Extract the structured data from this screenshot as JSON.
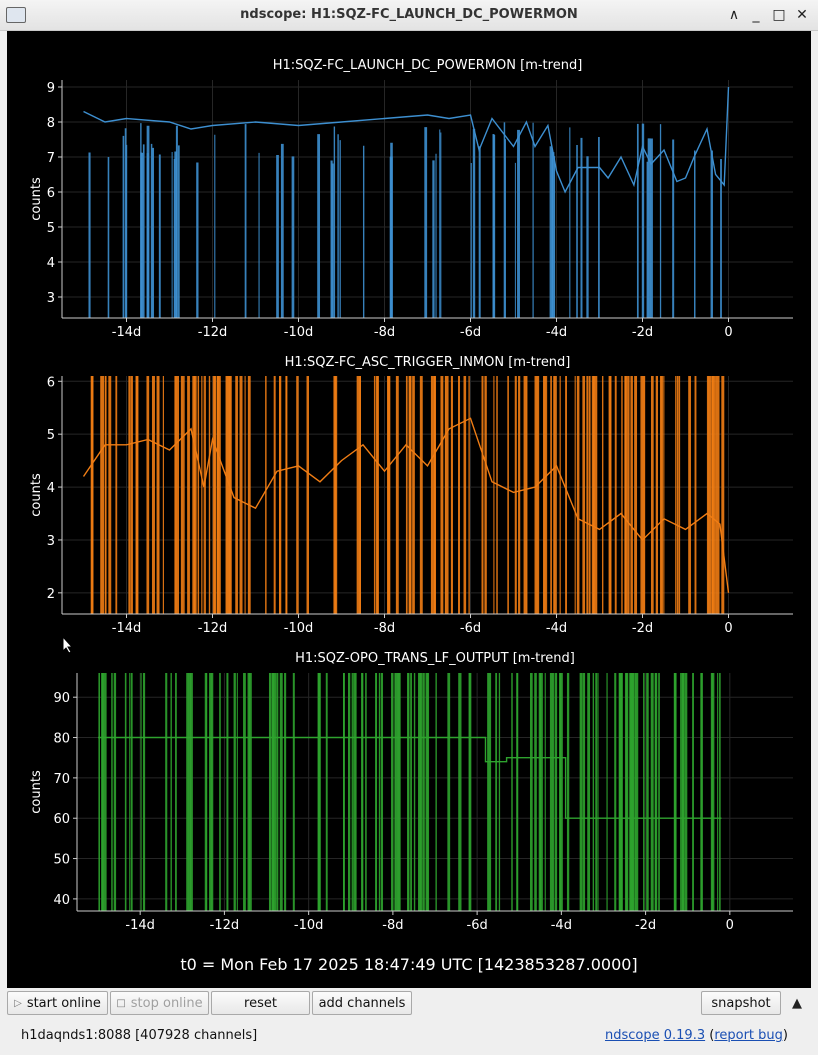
{
  "window": {
    "title": "ndscope: H1:SQZ-FC_LAUNCH_DC_POWERMON"
  },
  "x_ticks": [
    "-14d",
    "-12d",
    "-10d",
    "-8d",
    "-6d",
    "-4d",
    "-2d",
    "0"
  ],
  "t0_label": "t0 = Mon Feb 17 2025 18:47:49 UTC [1423853287.0000]",
  "toolbar": {
    "start_online": "start online",
    "stop_online": "stop online",
    "reset": "reset",
    "add_channels": "add channels",
    "snapshot": "snapshot"
  },
  "status": {
    "server": "h1daqnds1:8088  [407928 channels]",
    "app": "ndscope",
    "version": "0.19.3",
    "report": "report bug"
  },
  "chart_data": [
    {
      "type": "line",
      "title": "H1:SQZ-FC_LAUNCH_DC_POWERMON [m-trend]",
      "ylabel": "counts",
      "color": "#3d8fd0",
      "xlim": [
        -15.5,
        1.5
      ],
      "ylim": [
        2.4,
        9.2
      ],
      "yticks": [
        "3",
        "4",
        "5",
        "6",
        "7",
        "8",
        "9"
      ],
      "x": [
        -15,
        -14.5,
        -14,
        -13,
        -12.5,
        -12,
        -11,
        -10,
        -9,
        -8,
        -7,
        -6.5,
        -6,
        -5.8,
        -5.5,
        -5,
        -4.7,
        -4.5,
        -4.2,
        -4,
        -3.8,
        -3.5,
        -3,
        -2.8,
        -2.5,
        -2.2,
        -2,
        -1.8,
        -1.5,
        -1.2,
        -1,
        -0.8,
        -0.5,
        -0.3,
        -0.1,
        0
      ],
      "y": [
        8.3,
        8.0,
        8.1,
        8.0,
        7.8,
        7.9,
        8.0,
        7.9,
        8.0,
        8.1,
        8.2,
        8.1,
        8.2,
        7.2,
        8.1,
        7.3,
        8.0,
        7.3,
        7.9,
        6.6,
        6.0,
        6.7,
        6.7,
        6.4,
        7.0,
        6.2,
        7.3,
        6.8,
        7.2,
        6.3,
        6.4,
        7.0,
        7.8,
        6.5,
        6.2,
        9.0
      ]
    },
    {
      "type": "line",
      "title": "H1:SQZ-FC_ASC_TRIGGER_INMON [m-trend]",
      "ylabel": "counts",
      "color": "#f07d14",
      "xlim": [
        -15.5,
        1.5
      ],
      "ylim": [
        1.6,
        6.1
      ],
      "yticks": [
        "2",
        "3",
        "4",
        "5",
        "6"
      ],
      "x": [
        -15,
        -14.5,
        -14,
        -13.5,
        -13,
        -12.5,
        -12.2,
        -12,
        -11.5,
        -11,
        -10.5,
        -10,
        -9.5,
        -9,
        -8.5,
        -8,
        -7.5,
        -7,
        -6.5,
        -6,
        -5.5,
        -5,
        -4.5,
        -4,
        -3.5,
        -3,
        -2.5,
        -2,
        -1.5,
        -1,
        -0.5,
        -0.2,
        0
      ],
      "y": [
        4.2,
        4.8,
        4.8,
        4.9,
        4.7,
        5.1,
        4.0,
        4.9,
        3.8,
        3.6,
        4.3,
        4.4,
        4.1,
        4.5,
        4.8,
        4.3,
        4.8,
        4.4,
        5.1,
        5.3,
        4.1,
        3.9,
        4.0,
        4.4,
        3.4,
        3.2,
        3.5,
        3.0,
        3.4,
        3.2,
        3.5,
        3.3,
        2.0
      ]
    },
    {
      "type": "line",
      "title": "H1:SQZ-OPO_TRANS_LF_OUTPUT [m-trend]",
      "ylabel": "counts",
      "color": "#2ea32e",
      "xlim": [
        -15.5,
        1.5
      ],
      "ylim": [
        37,
        96
      ],
      "yticks": [
        "40",
        "50",
        "60",
        "70",
        "80",
        "90"
      ],
      "x": [
        -15,
        -13.1,
        -13.1,
        -5.8,
        -5.8,
        -5.3,
        -5.3,
        -3.9,
        -3.9,
        -0.2
      ],
      "y": [
        80,
        80,
        80,
        80,
        74,
        74,
        75,
        75,
        60,
        60
      ]
    }
  ]
}
